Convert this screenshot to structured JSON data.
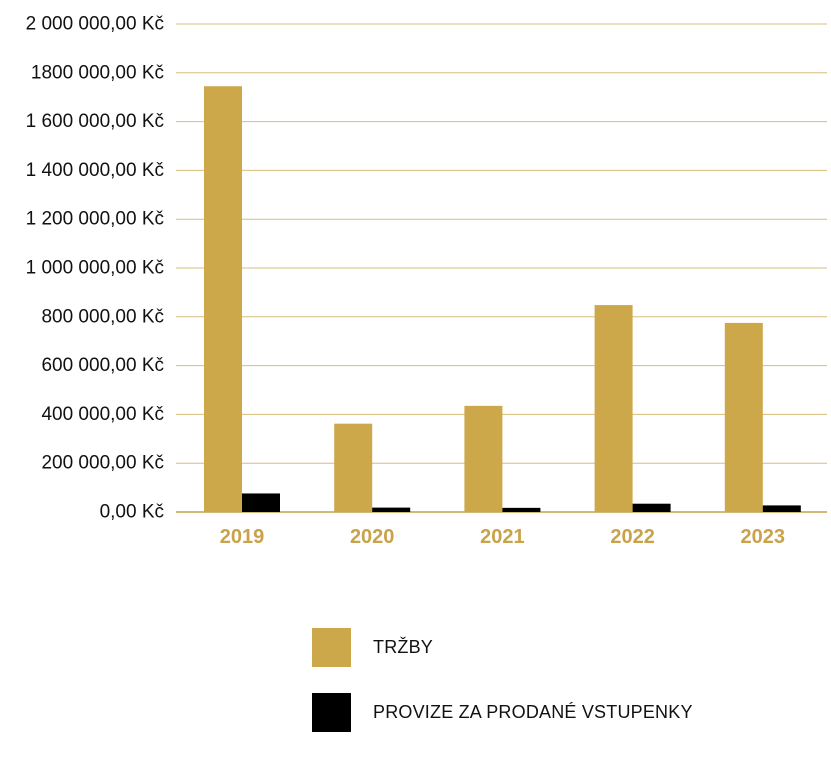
{
  "chart_data": {
    "type": "bar",
    "title": "",
    "xlabel": "",
    "ylabel": "",
    "ylim": [
      0,
      2000000
    ],
    "grid": true,
    "y_tick_values": [
      0,
      200000,
      400000,
      600000,
      800000,
      1000000,
      1200000,
      1400000,
      1600000,
      1800000,
      2000000
    ],
    "y_tick_labels": [
      "0,00 Kč",
      "200 000,00 Kč",
      "400 000,00 Kč",
      "600 000,00 Kč",
      "800 000,00 Kč",
      "1 000 000,00 Kč",
      "1 200 000,00 Kč",
      "1 400 000,00 Kč",
      "1 600 000,00 Kč",
      "1800 000,00 Kč",
      "2 000 000,00 Kč"
    ],
    "categories": [
      "2019",
      "2020",
      "2021",
      "2022",
      "2023"
    ],
    "series": [
      {
        "name": "TRŽBY",
        "color": "#CDA84B",
        "values": [
          1745000,
          362000,
          435000,
          848000,
          775000
        ]
      },
      {
        "name": "PROVIZE ZA PRODANÉ VSTUPENKY",
        "color": "#000000",
        "values": [
          76000,
          18000,
          17000,
          34000,
          27000
        ]
      }
    ],
    "legend_position": "bottom",
    "colors": {
      "gridline": "#D8BE7C",
      "axis": "#C9A24A",
      "category_label": "#C9A24A"
    }
  }
}
